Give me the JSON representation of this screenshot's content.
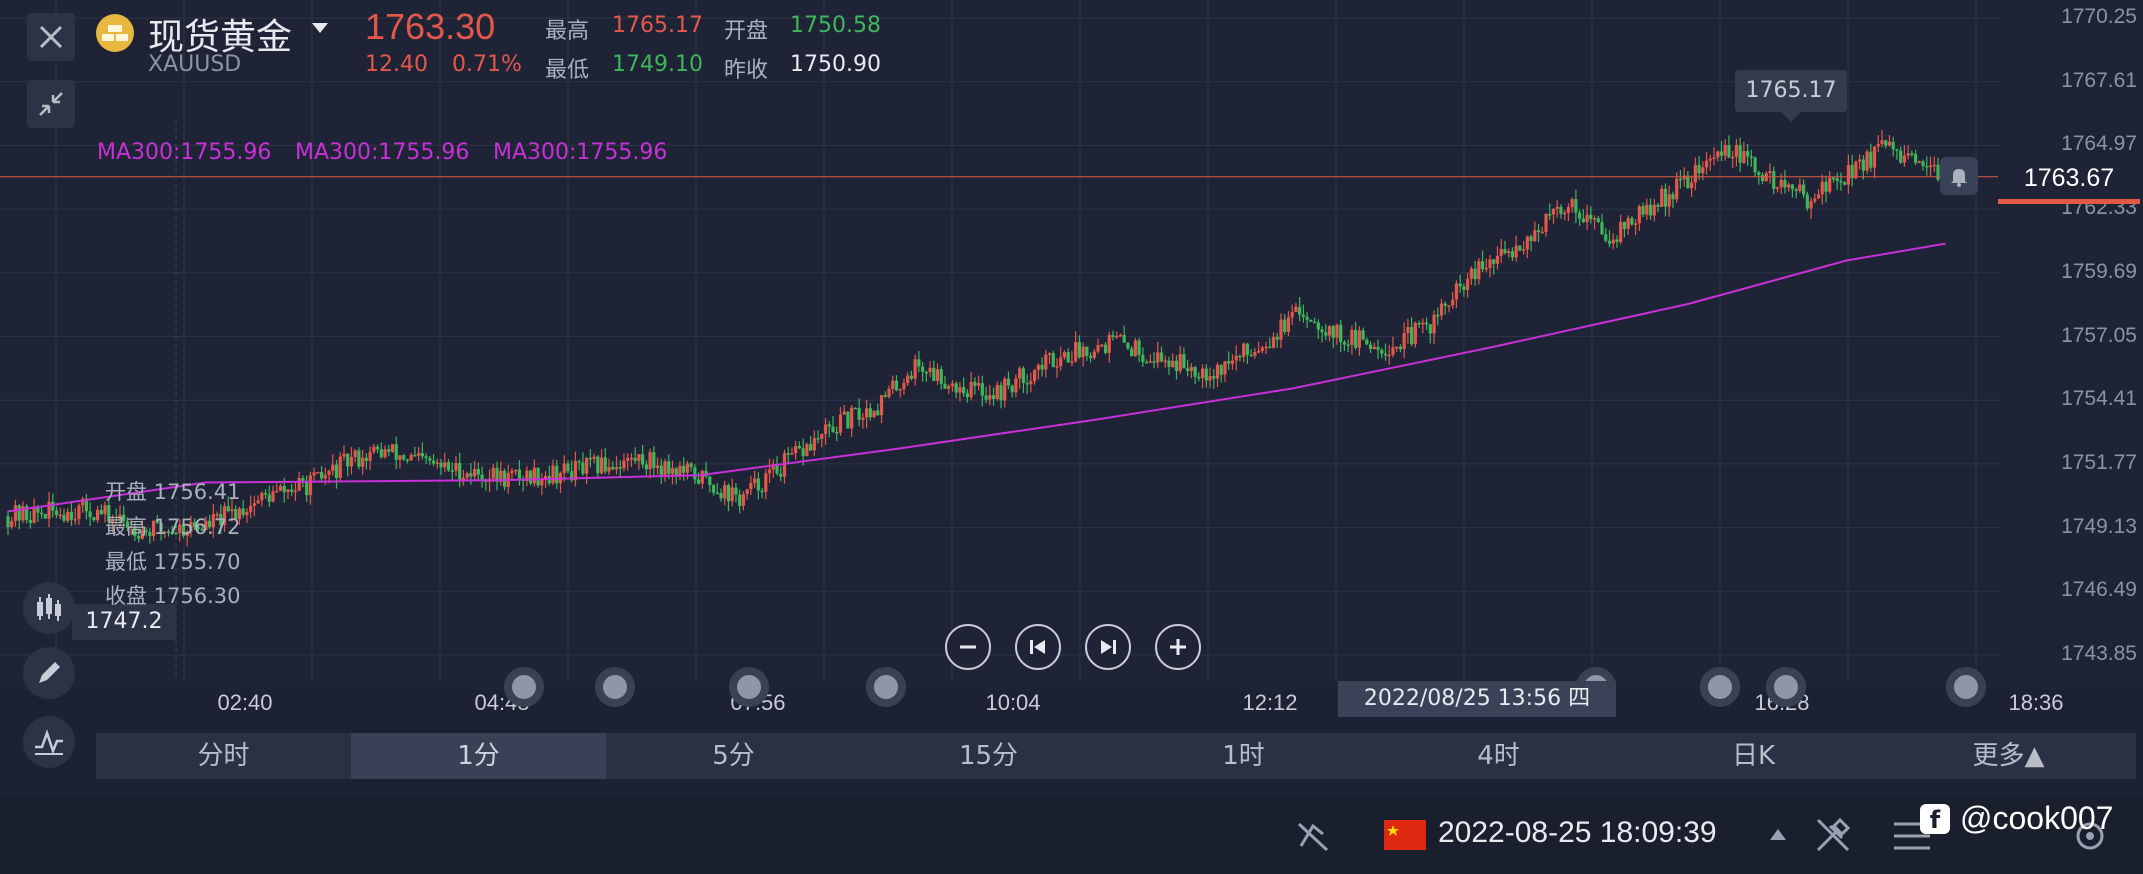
{
  "header": {
    "symbol_name": "现货黄金",
    "symbol_code": "XAUUSD",
    "price": "1763.30",
    "change": "12.40",
    "change_pct": "0.71%",
    "high_label": "最高",
    "high_value": "1765.17",
    "open_label": "开盘",
    "open_value": "1750.58",
    "low_label": "最低",
    "low_value": "1749.10",
    "prev_close_label": "昨收",
    "prev_close_value": "1750.90"
  },
  "ma_labels": [
    "MA300:1755.96",
    "MA300:1755.96",
    "MA300:1755.96"
  ],
  "ohlc_box": {
    "open": "开盘 1756.41",
    "high": "最高 1756.72",
    "low": "最低 1755.70",
    "close": "收盘 1756.30"
  },
  "crosshair": {
    "y_value": "1747.2",
    "time": "2022/08/25 13:56 四"
  },
  "current_price_tag": "1763.67",
  "max_marker": "1765.17",
  "timeframes": [
    "分时",
    "1分",
    "5分",
    "15分",
    "1时",
    "4时",
    "日K",
    "更多▲"
  ],
  "active_timeframe": "1分",
  "status_bar": {
    "datetime": "2022-08-25 18:09:39",
    "watermark": "@cook007"
  },
  "colors": {
    "up": "#e5574a",
    "down": "#3fb65a",
    "ma": "#c830d8",
    "background": "#1e2436",
    "price_line": "#e05a47"
  },
  "chart_data": {
    "type": "candlestick",
    "y_ticks": [
      "1770.25",
      "1767.61",
      "1764.97",
      "1762.33",
      "1759.69",
      "1757.05",
      "1754.41",
      "1751.77",
      "1749.13",
      "1746.49",
      "1743.85"
    ],
    "ylim": [
      1743.85,
      1770.25
    ],
    "x_ticks": [
      "02:40",
      "04:48",
      "07:56",
      "10:04",
      "12:12",
      "16:28",
      "18:36"
    ],
    "close_path": [
      [
        0,
        1749.6
      ],
      [
        0.04,
        1749.9
      ],
      [
        0.07,
        1749.0
      ],
      [
        0.1,
        1749.2
      ],
      [
        0.13,
        1750.4
      ],
      [
        0.155,
        1751.0
      ],
      [
        0.175,
        1752.0
      ],
      [
        0.19,
        1752.3
      ],
      [
        0.22,
        1751.6
      ],
      [
        0.25,
        1751.2
      ],
      [
        0.28,
        1751.4
      ],
      [
        0.32,
        1752.0
      ],
      [
        0.35,
        1751.2
      ],
      [
        0.37,
        1750.3
      ],
      [
        0.39,
        1751.6
      ],
      [
        0.42,
        1753.4
      ],
      [
        0.44,
        1754.2
      ],
      [
        0.46,
        1755.9
      ],
      [
        0.48,
        1755.0
      ],
      [
        0.5,
        1754.7
      ],
      [
        0.53,
        1756.2
      ],
      [
        0.56,
        1756.9
      ],
      [
        0.58,
        1756.2
      ],
      [
        0.61,
        1755.6
      ],
      [
        0.635,
        1756.8
      ],
      [
        0.655,
        1758.1
      ],
      [
        0.675,
        1757.0
      ],
      [
        0.7,
        1756.6
      ],
      [
        0.72,
        1757.6
      ],
      [
        0.74,
        1759.5
      ],
      [
        0.765,
        1760.9
      ],
      [
        0.79,
        1762.6
      ],
      [
        0.81,
        1761.2
      ],
      [
        0.83,
        1762.3
      ],
      [
        0.85,
        1763.6
      ],
      [
        0.87,
        1764.9
      ],
      [
        0.89,
        1763.6
      ],
      [
        0.91,
        1762.8
      ],
      [
        0.93,
        1763.8
      ],
      [
        0.95,
        1764.9
      ],
      [
        0.97,
        1763.8
      ],
      [
        0.98,
        1763.67
      ]
    ],
    "ma300_path": [
      [
        0,
        1749.8
      ],
      [
        0.1,
        1751.0
      ],
      [
        0.25,
        1751.1
      ],
      [
        0.35,
        1751.3
      ],
      [
        0.45,
        1752.4
      ],
      [
        0.55,
        1753.6
      ],
      [
        0.65,
        1754.9
      ],
      [
        0.75,
        1756.6
      ],
      [
        0.85,
        1758.4
      ],
      [
        0.93,
        1760.2
      ],
      [
        0.98,
        1760.9
      ]
    ],
    "max": {
      "value": 1765.17,
      "x": 0.875
    },
    "current_price": 1763.67
  }
}
